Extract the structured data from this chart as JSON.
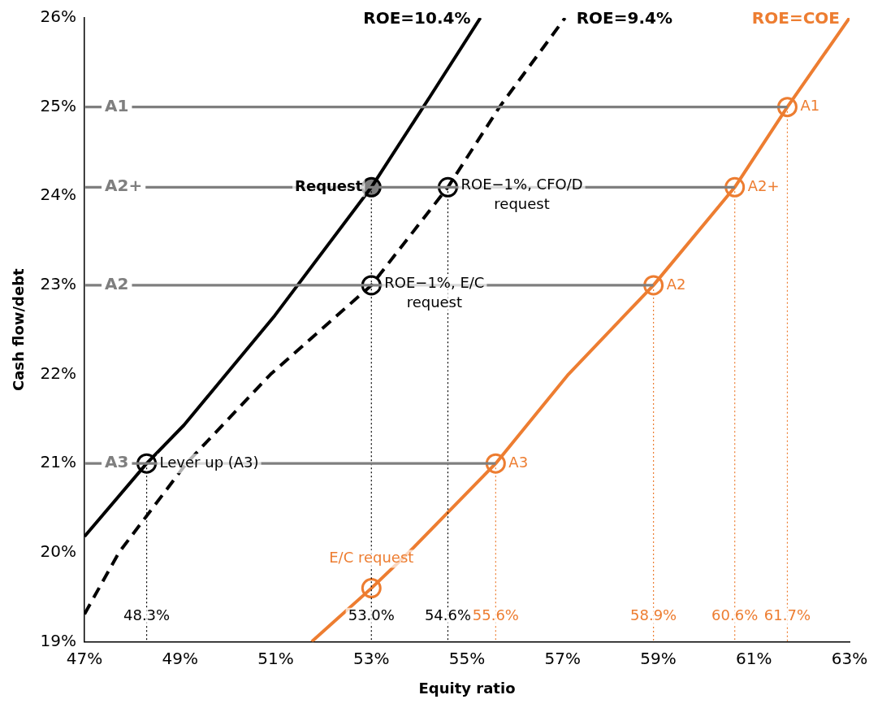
{
  "chart_data": {
    "type": "line",
    "xlabel": "Equity ratio",
    "ylabel": "Cash flow/debt",
    "xlim": [
      47,
      63
    ],
    "ylim": [
      19,
      26
    ],
    "xticks": [
      {
        "value": 47,
        "label": "47%"
      },
      {
        "value": 49,
        "label": "49%"
      },
      {
        "value": 51,
        "label": "51%"
      },
      {
        "value": 53,
        "label": "53%"
      },
      {
        "value": 55,
        "label": "55%"
      },
      {
        "value": 57,
        "label": "57%"
      },
      {
        "value": 59,
        "label": "59%"
      },
      {
        "value": 61,
        "label": "61%"
      },
      {
        "value": 63,
        "label": "63%"
      }
    ],
    "yticks": [
      {
        "value": 19,
        "label": "19%"
      },
      {
        "value": 20,
        "label": "20%"
      },
      {
        "value": 21,
        "label": "21%"
      },
      {
        "value": 22,
        "label": "22%"
      },
      {
        "value": 23,
        "label": "23%"
      },
      {
        "value": 24,
        "label": "24%"
      },
      {
        "value": 25,
        "label": "25%"
      },
      {
        "value": 26,
        "label": "26%"
      }
    ],
    "grid": false,
    "legend": false,
    "annotations": [
      {
        "text": "48.3%",
        "x": 48.3,
        "y": 19.28
      },
      {
        "text": "53.0%",
        "x": 53.0,
        "y": 19.28
      },
      {
        "text": "54.6%",
        "x": 54.6,
        "y": 19.28
      },
      {
        "text": "55.6%",
        "x": 55.6,
        "y": 19.28
      },
      {
        "text": "58.9%",
        "x": 58.9,
        "y": 19.28
      },
      {
        "text": "60.6%",
        "x": 60.6,
        "y": 19.28
      },
      {
        "text": "61.7%",
        "x": 61.7,
        "y": 19.28
      }
    ],
    "series": [
      {
        "name": "A1",
        "color": "#7f7f7f",
        "x": [
          47,
          61.7
        ],
        "values": [
          25,
          25
        ]
      },
      {
        "name": "A2+",
        "color": "#7f7f7f",
        "x": [
          47,
          60.6
        ],
        "values": [
          24.1,
          24.1
        ]
      },
      {
        "name": "A2",
        "color": "#7f7f7f",
        "x": [
          47,
          58.9
        ],
        "values": [
          23,
          23
        ]
      },
      {
        "name": "A3",
        "color": "#7f7f7f",
        "x": [
          47,
          55.6
        ],
        "values": [
          21,
          21
        ]
      },
      {
        "line_style": "dotted",
        "color": "#000000",
        "x": [
          48.3,
          48.3
        ],
        "values": [
          21,
          19
        ]
      },
      {
        "line_style": "dotted",
        "color": "#000000",
        "x": [
          53.0,
          53.0
        ],
        "values": [
          24.1,
          19
        ]
      },
      {
        "line_style": "dotted",
        "color": "#000000",
        "x": [
          54.6,
          54.6
        ],
        "values": [
          24.1,
          19
        ]
      },
      {
        "line_style": "dotted",
        "color": "#ed7d31",
        "x": [
          55.6,
          55.6
        ],
        "values": [
          21,
          19
        ]
      },
      {
        "line_style": "dotted",
        "color": "#ed7d31",
        "x": [
          58.9,
          58.9
        ],
        "values": [
          23,
          19
        ]
      },
      {
        "line_style": "dotted",
        "color": "#ed7d31",
        "x": [
          60.6,
          60.6
        ],
        "values": [
          24.1,
          19
        ]
      },
      {
        "line_style": "dotted",
        "color": "#ed7d31",
        "x": [
          61.7,
          61.7
        ],
        "values": [
          25,
          19
        ]
      },
      {
        "name": "ROE=10.4%",
        "line_style": "solid",
        "color": "#000000",
        "x": [
          47,
          48.3,
          49.08,
          50.98,
          53.0,
          54.23,
          55.28
        ],
        "values": [
          20.18,
          21,
          21.43,
          22.66,
          24.1,
          25.12,
          26
        ]
      },
      {
        "name": "ROE=9.4%",
        "line_style": "dashed",
        "color": "#000000",
        "x": [
          47,
          47.72,
          49.13,
          50.89,
          53.0,
          54.6,
          55.68,
          57.05
        ],
        "values": [
          19.31,
          20,
          21,
          22,
          23,
          24.1,
          25,
          26
        ]
      },
      {
        "name": "ROE=COE",
        "line_style": "solid",
        "color": "#ed7d31",
        "x": [
          51.75,
          53.0,
          53.78,
          55.6,
          57.12,
          58.9,
          60.6,
          61.7,
          63
        ],
        "values": [
          19,
          19.6,
          20,
          21,
          22,
          23,
          24.1,
          25,
          26
        ]
      },
      {
        "type": "scatter",
        "marker": "circle",
        "color": "#000000",
        "x": [
          48.3,
          53.0,
          54.6
        ],
        "values": [
          21,
          23,
          24.1
        ],
        "value_labels": [
          "Lever up (A3)",
          "ROE−1%, E/C\nrequest",
          "ROE−1%, CFO/D\nrequest"
        ]
      },
      {
        "type": "scatter",
        "marker": "circle",
        "color": "#000000",
        "colors": [
          "#7f7f7f"
        ],
        "x": [
          53.0
        ],
        "values": [
          24.1
        ],
        "value_labels": [
          "Request"
        ]
      },
      {
        "type": "scatter",
        "marker": "circle",
        "color": "#ed7d31",
        "x": [
          55.6,
          58.9,
          60.6,
          61.7,
          53.0
        ],
        "values": [
          21,
          23,
          24.1,
          25,
          19.6
        ],
        "value_labels": [
          "A3",
          "A2",
          "A2+",
          "A1",
          "E/C request"
        ]
      }
    ]
  }
}
